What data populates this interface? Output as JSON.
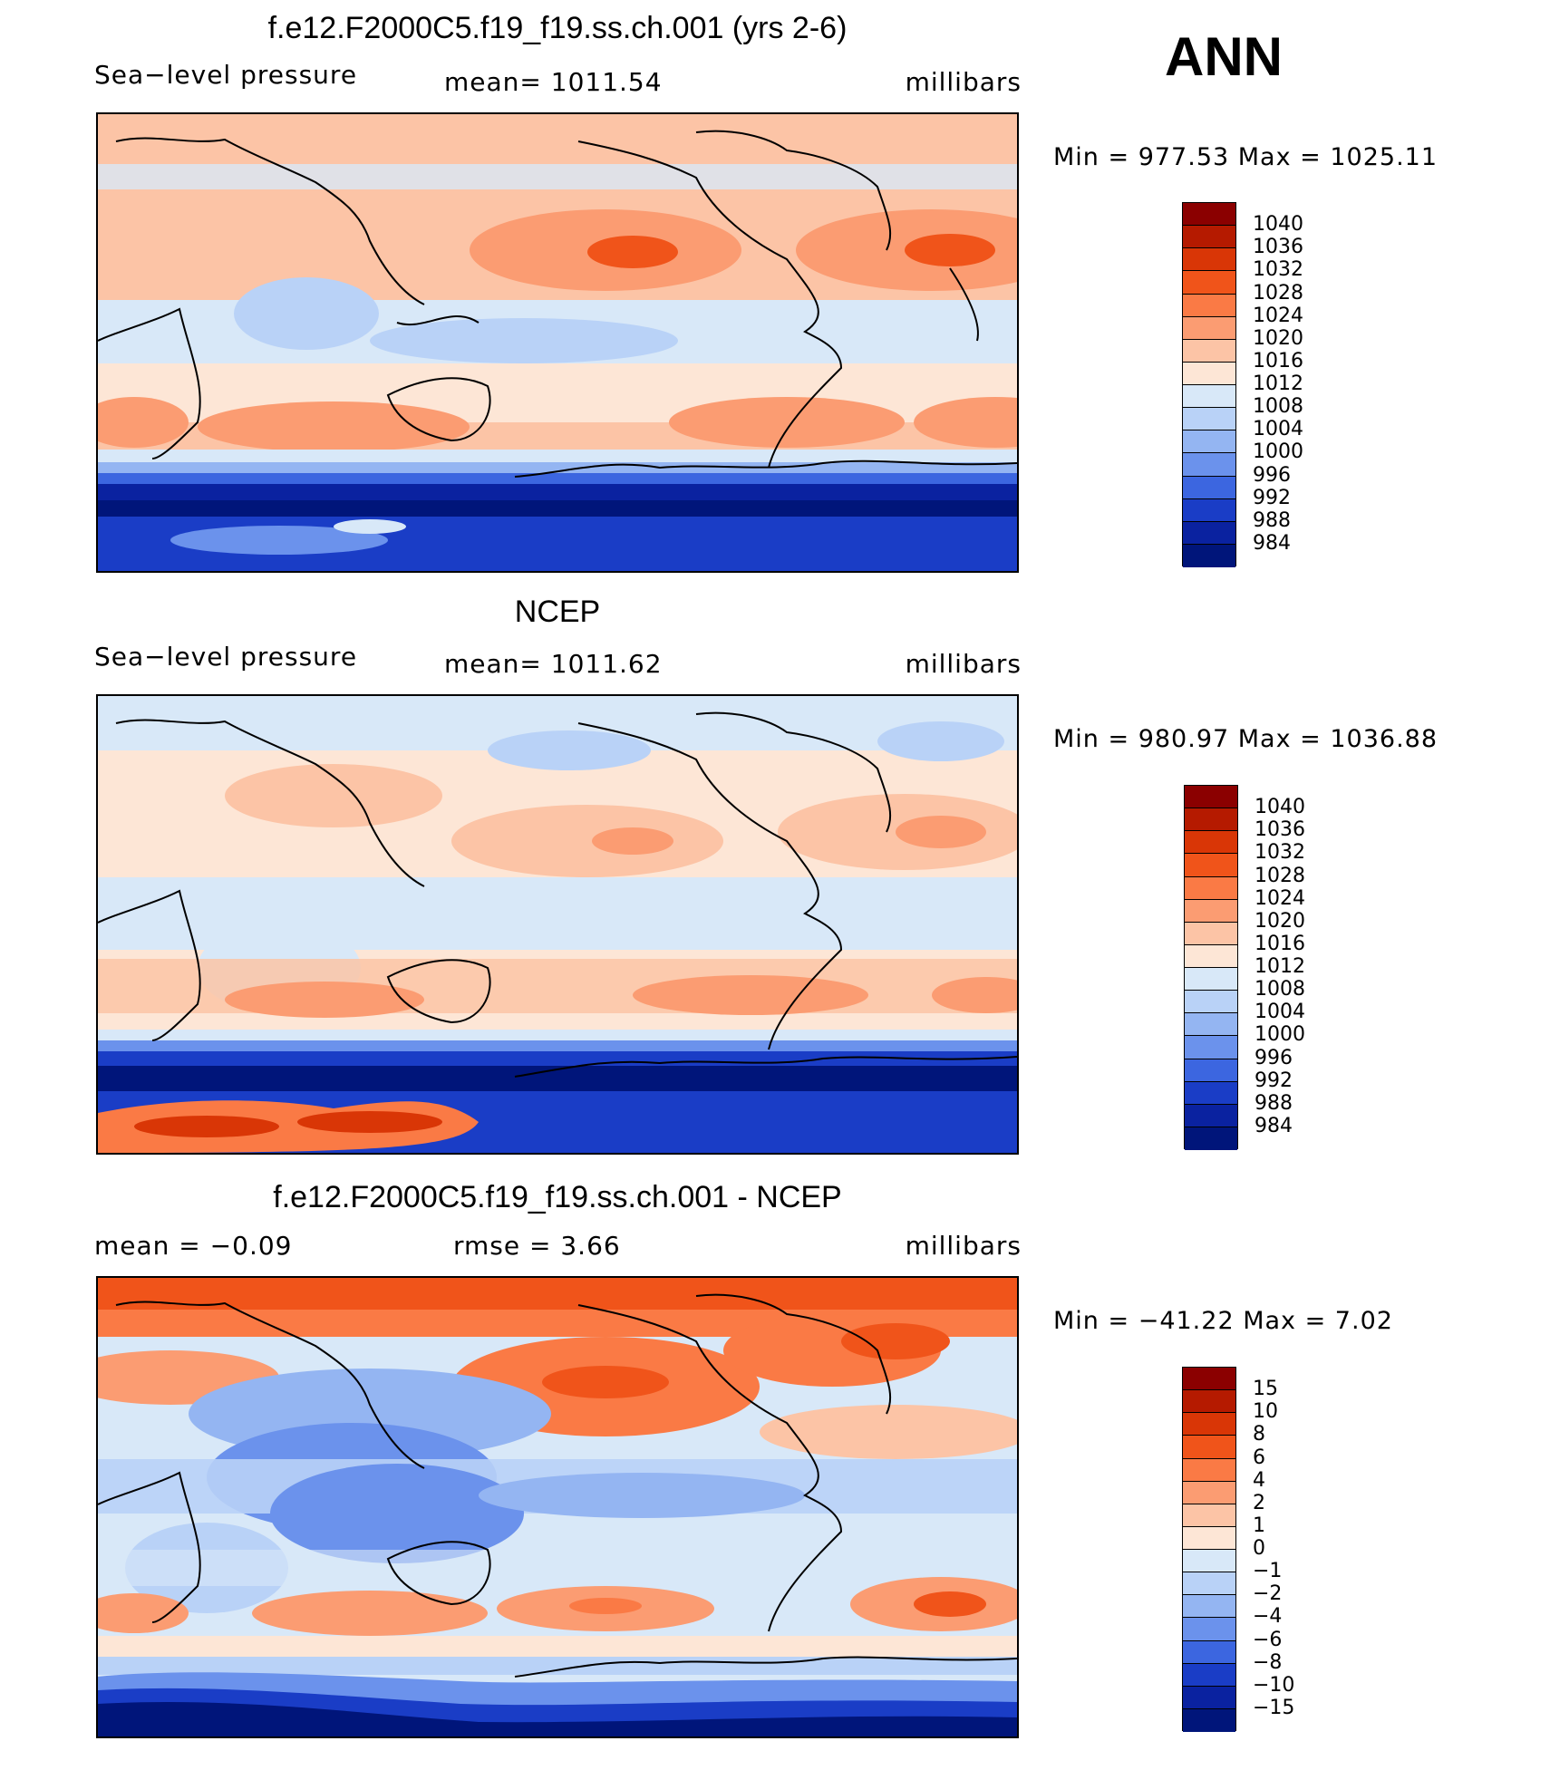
{
  "season": "ANN",
  "panels": [
    {
      "title": "f.e12.F2000C5.f19_f19.ss.ch.001 (yrs 2-6)",
      "left_text": "Sea−level pressure",
      "center_text": "mean=  1011.54",
      "right_text": "millibars",
      "minmax": "Min  =  977.53  Max  =  1025.11"
    },
    {
      "title": "NCEP",
      "left_text": "Sea−level pressure",
      "center_text": "mean=  1011.62",
      "right_text": "millibars",
      "minmax": "Min  =  980.97  Max  =  1036.88"
    },
    {
      "title": "f.e12.F2000C5.f19_f19.ss.ch.001 - NCEP",
      "left_text": "mean  =    −0.09",
      "center_text": "rmse  =     3.66",
      "right_text": "millibars",
      "minmax": "Min  =  −41.22  Max  =      7.02"
    }
  ],
  "colorbars": {
    "pressure": {
      "labels": [
        "1040",
        "1036",
        "1032",
        "1028",
        "1024",
        "1020",
        "1016",
        "1012",
        "1008",
        "1004",
        "1000",
        "996",
        "992",
        "988",
        "984"
      ],
      "colors": [
        "#8b0000",
        "#b51a00",
        "#d93606",
        "#f0541a",
        "#fa7a45",
        "#fb9c72",
        "#fcc4a6",
        "#fde6d6",
        "#d8e8f8",
        "#b9d2f7",
        "#94b5f2",
        "#6b92ec",
        "#3c66e0",
        "#1a3dc6",
        "#0a22a0",
        "#00157a"
      ]
    },
    "difference": {
      "labels": [
        "15",
        "10",
        "8",
        "6",
        "4",
        "2",
        "1",
        "0",
        "−1",
        "−2",
        "−4",
        "−6",
        "−8",
        "−10",
        "−15"
      ],
      "colors": [
        "#8b0000",
        "#b51a00",
        "#d93606",
        "#f0541a",
        "#fa7a45",
        "#fb9c72",
        "#fcc4a6",
        "#fde6d6",
        "#d8e8f8",
        "#b9d2f7",
        "#94b5f2",
        "#6b92ec",
        "#3c66e0",
        "#1a3dc6",
        "#0a22a0",
        "#00157a"
      ]
    }
  }
}
